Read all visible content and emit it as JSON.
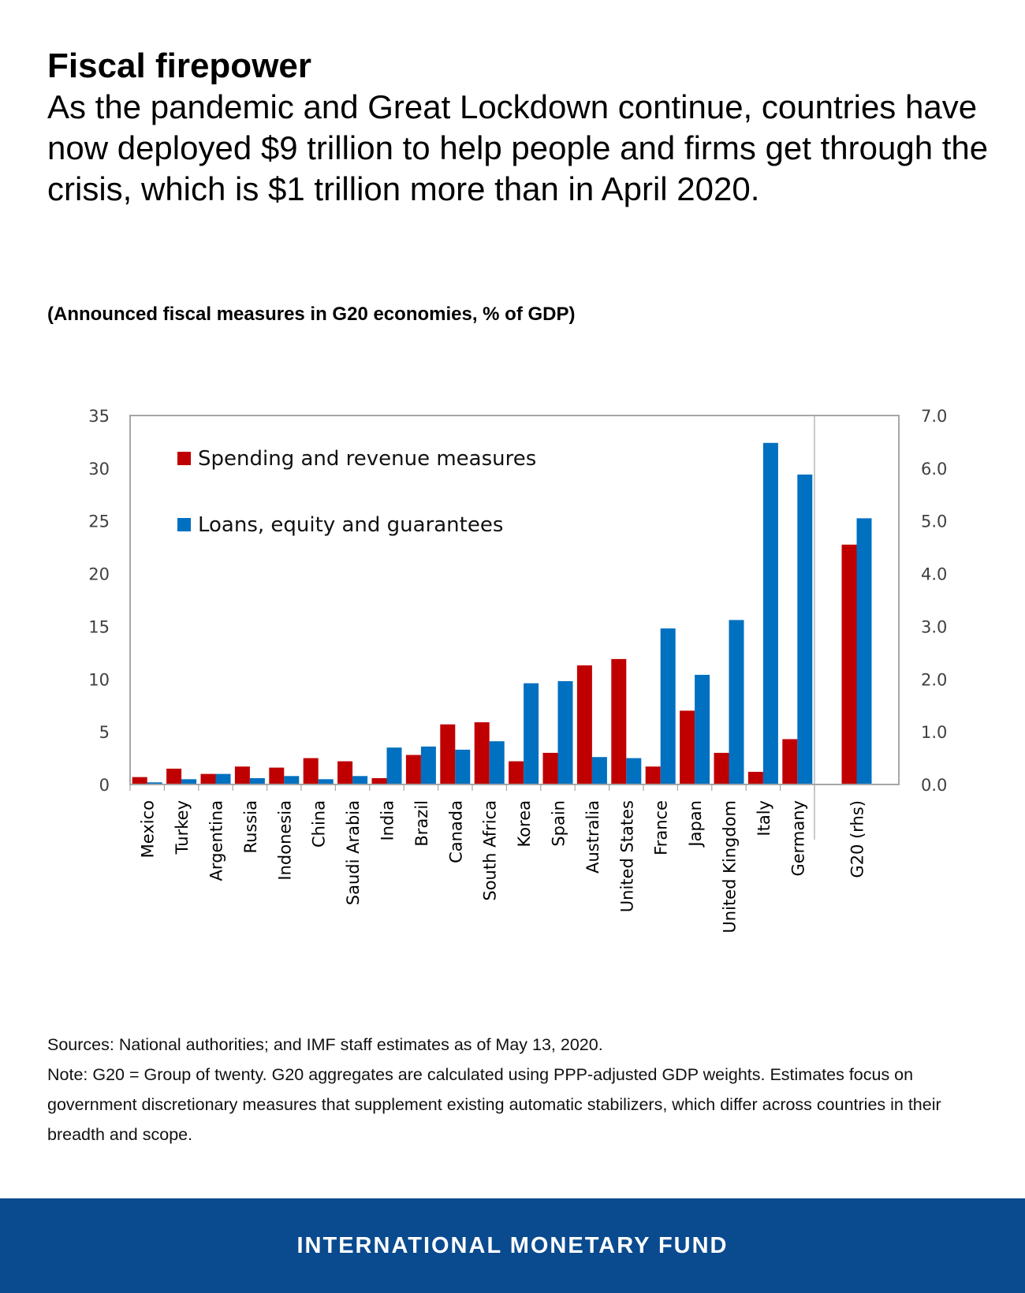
{
  "header": {
    "title": "Fiscal firepower",
    "headline": "As the pandemic and Great Lockdown continue, countries have now deployed $9 trillion to help people and firms get through the crisis, which is $1 trillion more than in April 2020."
  },
  "subtitle": "(Announced fiscal measures in G20 economies, % of GDP)",
  "colors": {
    "spending": "#C00000",
    "loans": "#0070C0",
    "footer_bg": "#0A4A8F"
  },
  "chart_data": {
    "type": "bar",
    "categories": [
      "Mexico",
      "Turkey",
      "Argentina",
      "Russia",
      "Indonesia",
      "China",
      "Saudi Arabia",
      "India",
      "Brazil",
      "Canada",
      "South Africa",
      "Korea",
      "Spain",
      "Australia",
      "United States",
      "France",
      "Japan",
      "United Kingdom",
      "Italy",
      "Germany"
    ],
    "series": [
      {
        "name": "Spending and revenue measures",
        "color": "#C00000",
        "values": [
          0.7,
          1.5,
          1.0,
          1.7,
          1.6,
          2.5,
          2.2,
          0.6,
          2.8,
          5.7,
          5.9,
          2.2,
          3.0,
          11.3,
          11.9,
          1.7,
          7.0,
          3.0,
          1.2,
          4.3
        ]
      },
      {
        "name": "Loans, equity and guarantees",
        "color": "#0070C0",
        "values": [
          0.2,
          0.5,
          1.0,
          0.6,
          0.8,
          0.5,
          0.8,
          3.5,
          3.6,
          3.3,
          4.1,
          9.6,
          9.8,
          2.6,
          2.5,
          14.8,
          10.4,
          15.6,
          32.4,
          29.4
        ]
      }
    ],
    "left_axis": {
      "ylim": [
        0,
        35
      ],
      "ticks": [
        "0",
        "5",
        "10",
        "15",
        "20",
        "25",
        "30",
        "35"
      ]
    },
    "right_axis": {
      "ylim": [
        0,
        7
      ],
      "ticks": [
        "0.0",
        "1.0",
        "2.0",
        "3.0",
        "4.0",
        "5.0",
        "6.0",
        "7.0"
      ]
    },
    "rhs_group": {
      "category": "G20 (rhs)",
      "values": [
        4.55,
        5.05
      ]
    },
    "legend_position": "top-left inside plot",
    "grid": false
  },
  "notes": {
    "sources": "Sources: National authorities; and IMF staff estimates as of May 13, 2020.",
    "note": "Note: G20 = Group of twenty. G20 aggregates are calculated using PPP-adjusted GDP weights. Estimates focus on government discretionary measures that supplement existing automatic stabilizers, which differ across countries in their breadth and scope."
  },
  "footer": {
    "label": "INTERNATIONAL MONETARY FUND"
  }
}
